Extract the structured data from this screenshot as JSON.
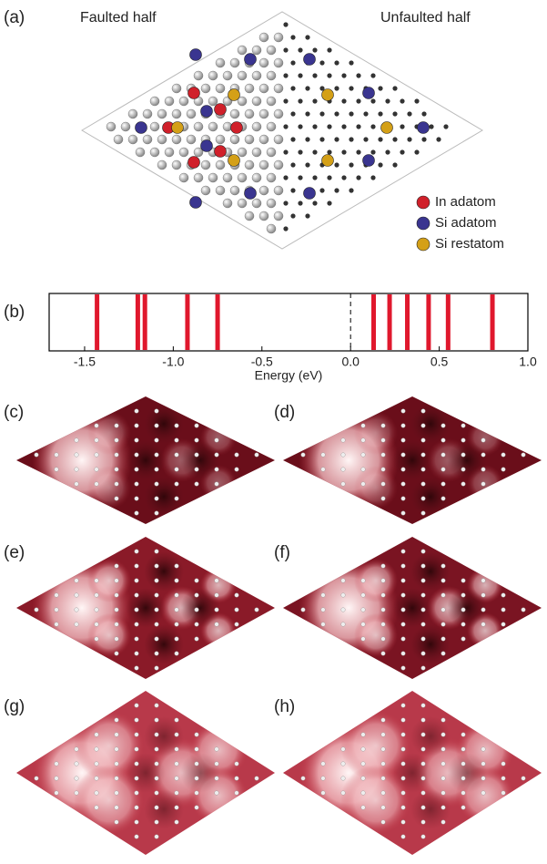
{
  "panel_labels": [
    "(a)",
    "(b)",
    "(c)",
    "(d)",
    "(e)",
    "(f)",
    "(g)",
    "(h)"
  ],
  "panel_a": {
    "left_title": "Faulted half",
    "right_title": "Unfaulted half",
    "legend": [
      {
        "name": "In adatom",
        "color": "#d0202a"
      },
      {
        "name": "Si adatom",
        "color": "#3a3590"
      },
      {
        "name": "Si restatom",
        "color": "#d4a017"
      }
    ]
  },
  "chart_data": {
    "type": "spike",
    "xlabel": "Energy (eV)",
    "color": "#e0182d",
    "values": [
      -1.43,
      -1.2,
      -1.16,
      -0.92,
      -0.75,
      0.13,
      0.22,
      0.32,
      0.44,
      0.55,
      0.8
    ],
    "xlim": [
      -1.7,
      1.0
    ],
    "xticks": [
      -1.5,
      {
        "value": -1.0,
        "label": "-1.0"
      },
      -0.5,
      {
        "value": 0.0,
        "label": "0.0"
      },
      0.5,
      {
        "value": 1.0,
        "label": "1.0"
      }
    ]
  }
}
